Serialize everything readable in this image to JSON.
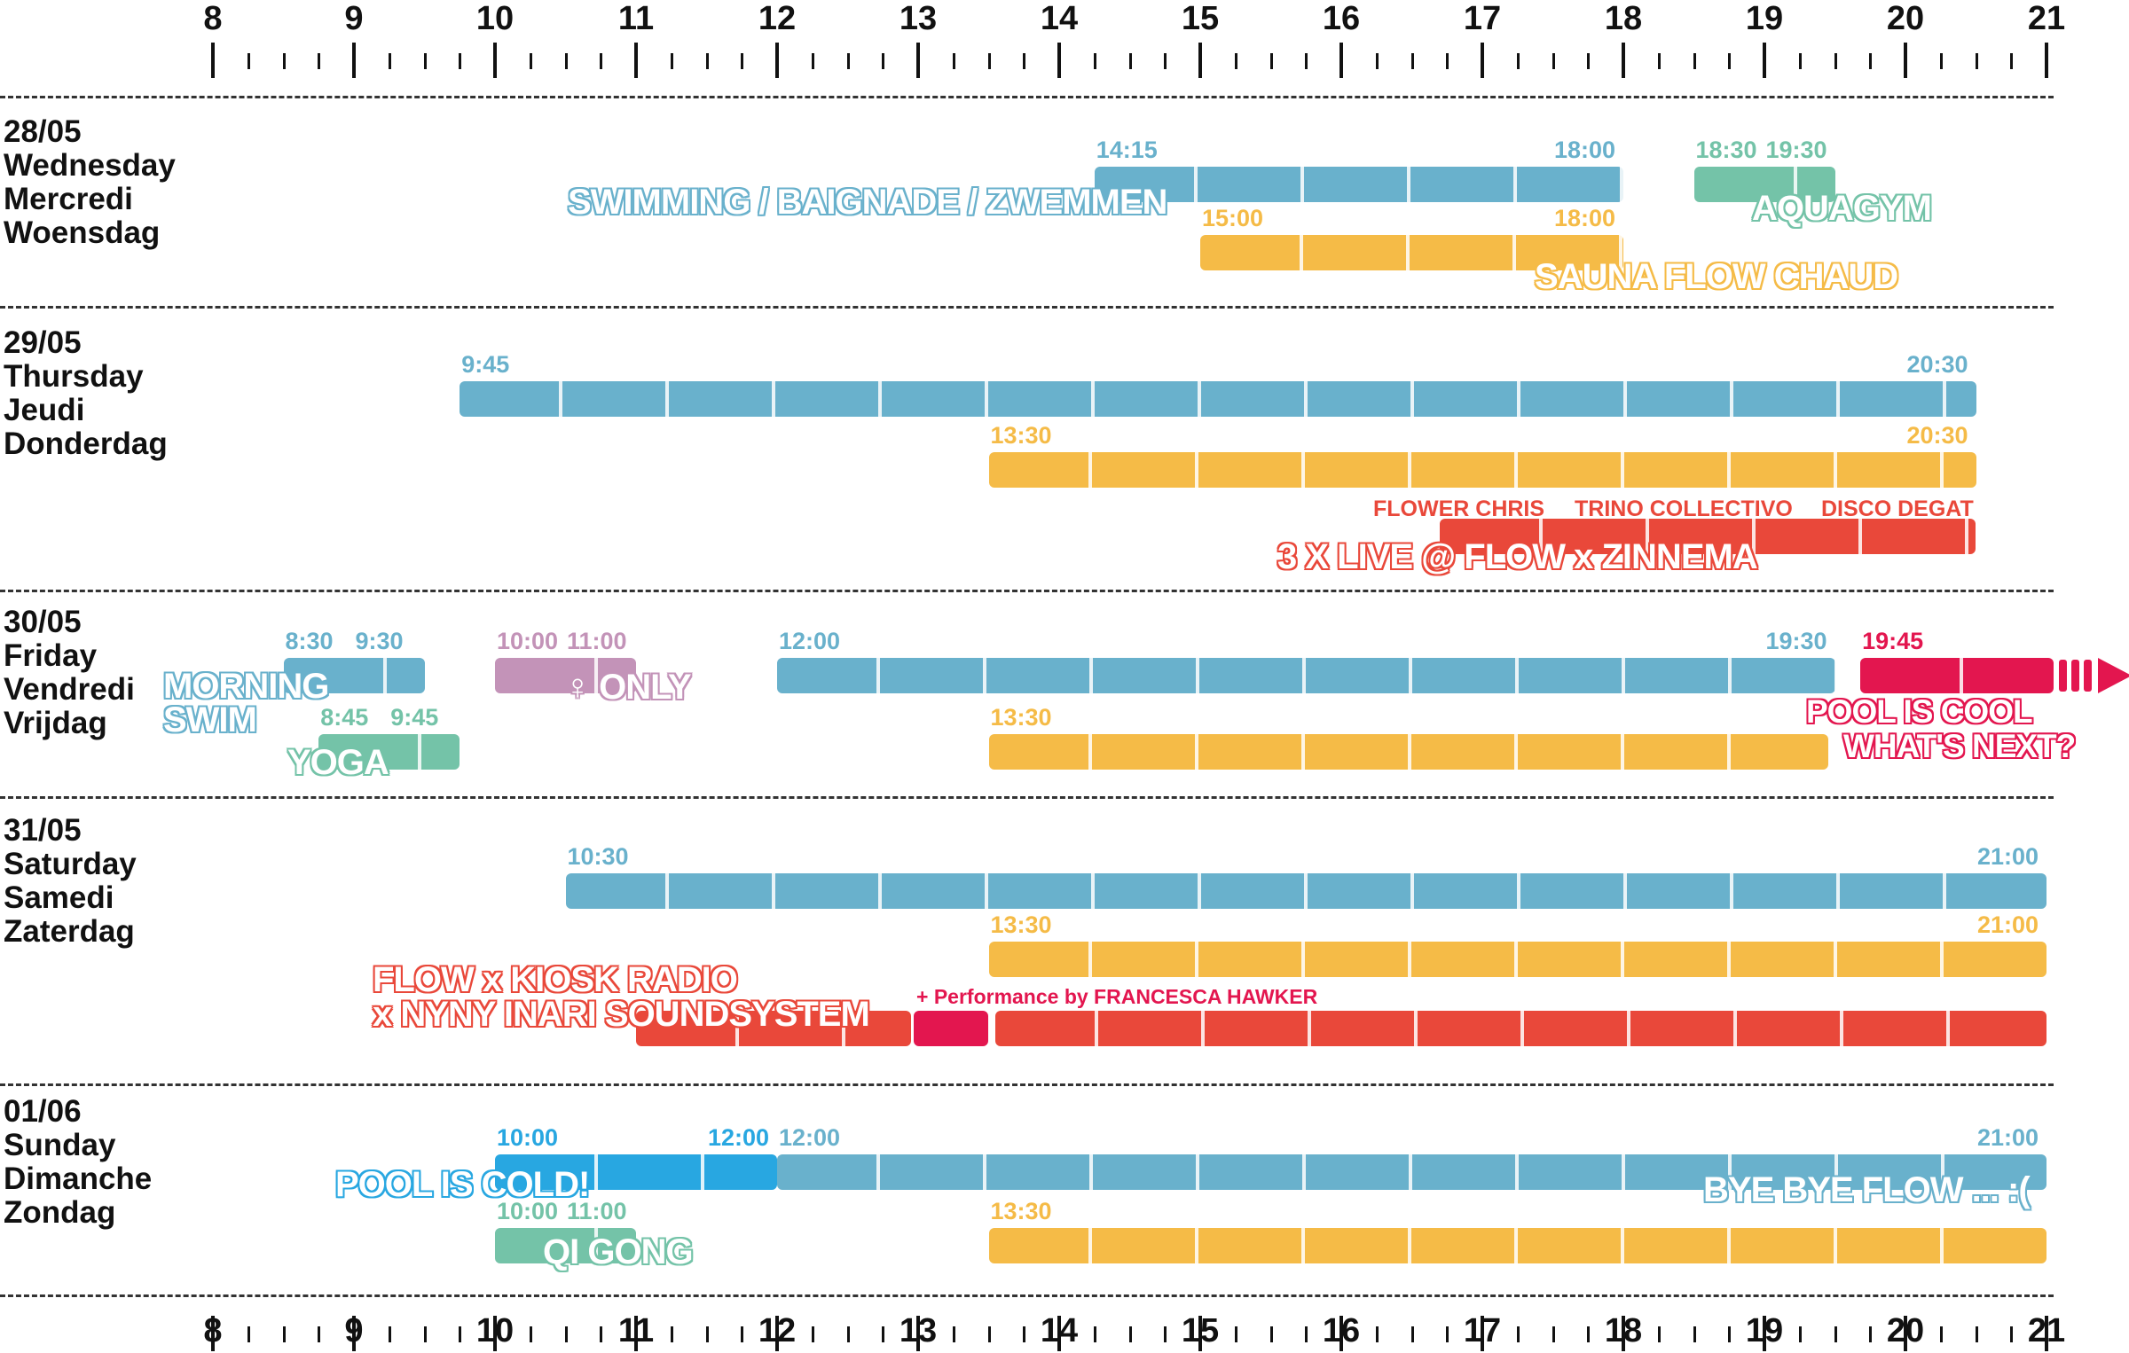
{
  "hours": [
    "8",
    "9",
    "10",
    "11",
    "12",
    "13",
    "14",
    "15",
    "16",
    "17",
    "18",
    "19",
    "20",
    "21"
  ],
  "colors": {
    "swim": "#69b1cc",
    "sauna": "#f5bb47",
    "aquagym": "#74c3a8",
    "live": "#e9483a",
    "women": "#c393b8",
    "pink": "#e3164f",
    "cold": "#28a7e1"
  },
  "days": [
    {
      "date": "28/05",
      "en": "Wednesday",
      "fr": "Mercredi",
      "nl": "Woensdag"
    },
    {
      "date": "29/05",
      "en": "Thursday",
      "fr": "Jeudi",
      "nl": "Donderdag"
    },
    {
      "date": "30/05",
      "en": "Friday",
      "fr": "Vendredi",
      "nl": "Vrijdag"
    },
    {
      "date": "31/05",
      "en": "Saturday",
      "fr": "Samedi",
      "nl": "Zaterdag"
    },
    {
      "date": "01/06",
      "en": "Sunday",
      "fr": "Dimanche",
      "nl": "Zondag"
    }
  ],
  "events": [
    {
      "day": 0,
      "row": 0,
      "start": 14.25,
      "end": 18.0,
      "color": "swim",
      "start_label": "14:15",
      "end_label": "18:00"
    },
    {
      "day": 0,
      "row": 0,
      "start": 18.5,
      "end": 19.5,
      "color": "aquagym",
      "start_label": "18:30",
      "end_label": "19:30"
    },
    {
      "day": 0,
      "row": 1,
      "start": 15.0,
      "end": 18.0,
      "color": "sauna",
      "start_label": "15:00",
      "end_label": "18:00"
    },
    {
      "day": 1,
      "row": 0,
      "start": 9.75,
      "end": 20.5,
      "color": "swim",
      "start_label": "9:45",
      "end_label": "20:30"
    },
    {
      "day": 1,
      "row": 1,
      "start": 13.5,
      "end": 20.5,
      "color": "sauna",
      "start_label": "13:30",
      "end_label": "20:30"
    },
    {
      "day": 1,
      "row": 2,
      "start": 16.7,
      "end": 20.5,
      "color": "live",
      "start_label": "",
      "end_label": ""
    },
    {
      "day": 2,
      "row": 0,
      "start": 8.5,
      "end": 9.5,
      "color": "swim",
      "start_label": "8:30",
      "end_label": "9:30"
    },
    {
      "day": 2,
      "row": 0,
      "start": 10.0,
      "end": 11.0,
      "color": "women",
      "start_label": "10:00",
      "end_label": "11:00"
    },
    {
      "day": 2,
      "row": 0,
      "start": 12.0,
      "end": 19.5,
      "color": "swim",
      "start_label": "12:00",
      "end_label": "19:30"
    },
    {
      "day": 2,
      "row": 0,
      "start": 19.68,
      "end": 21.05,
      "color": "pink",
      "start_label": "19:45",
      "end_label": ""
    },
    {
      "day": 2,
      "row": 1,
      "start": 8.75,
      "end": 9.75,
      "color": "aquagym",
      "start_label": "8:45",
      "end_label": "9:45"
    },
    {
      "day": 2,
      "row": 1,
      "start": 13.5,
      "end": 19.45,
      "color": "sauna",
      "start_label": "13:30",
      "end_label": ""
    },
    {
      "day": 3,
      "row": 0,
      "start": 10.5,
      "end": 21.0,
      "color": "swim",
      "start_label": "10:30",
      "end_label": "21:00"
    },
    {
      "day": 3,
      "row": 1,
      "start": 13.5,
      "end": 21.0,
      "color": "sauna",
      "start_label": "13:30",
      "end_label": "21:00"
    },
    {
      "day": 3,
      "row": 2,
      "start": 11.0,
      "end": 12.95,
      "color": "live",
      "start_label": "",
      "end_label": ""
    },
    {
      "day": 3,
      "row": 2,
      "start": 12.97,
      "end": 13.5,
      "color": "pink",
      "start_label": "",
      "end_label": ""
    },
    {
      "day": 3,
      "row": 2,
      "start": 13.55,
      "end": 21.0,
      "color": "live",
      "start_label": "",
      "end_label": ""
    },
    {
      "day": 4,
      "row": 0,
      "start": 10.0,
      "end": 12.0,
      "color": "cold",
      "start_label": "10:00",
      "end_label": "12:00"
    },
    {
      "day": 4,
      "row": 0,
      "start": 12.0,
      "end": 21.0,
      "color": "swim",
      "start_label": "12:00",
      "end_label": "21:00"
    },
    {
      "day": 4,
      "row": 1,
      "start": 10.0,
      "end": 11.0,
      "color": "aquagym",
      "start_label": "10:00",
      "end_label": "11:00"
    },
    {
      "day": 4,
      "row": 1,
      "start": 13.5,
      "end": 21.0,
      "color": "sauna",
      "start_label": "13:30",
      "end_label": ""
    }
  ],
  "labels": [
    {
      "text": "SWIMMING / BAIGNADE / ZWEMMEN",
      "color": "swim"
    },
    {
      "text": "AQUAGYM",
      "color": "aquagym"
    },
    {
      "text": "SAUNA FLOW CHAUD",
      "color": "sauna"
    },
    {
      "text": "FLOWER CHRIS",
      "color": "live"
    },
    {
      "text": "TRINO COLLECTIVO",
      "color": "live"
    },
    {
      "text": "DISCO DEGAT",
      "color": "live"
    },
    {
      "text": "3 X LIVE @ FLOW x ZINNEMA",
      "color": "live"
    },
    {
      "text": "MORNING",
      "color": "swim"
    },
    {
      "text": "SWIM",
      "color": "swim"
    },
    {
      "text": "♀ ONLY",
      "color": "women"
    },
    {
      "text": "YOGA",
      "color": "aquagym"
    },
    {
      "text": "POOL IS COOL",
      "color": "pink"
    },
    {
      "text": "WHAT'S NEXT?",
      "color": "pink"
    },
    {
      "text": "FLOW x KIOSK RADIO",
      "color": "live"
    },
    {
      "text": "x NYNY INARI SOUNDSYSTEM",
      "color": "live"
    },
    {
      "text": "+ Performance by FRANCESCA HAWKER",
      "color": "pink"
    },
    {
      "text": "POOL IS COLD!",
      "color": "cold"
    },
    {
      "text": "QI GONG",
      "color": "aquagym"
    },
    {
      "text": "BYE BYE FLOW ... :(",
      "color": "swim"
    }
  ]
}
